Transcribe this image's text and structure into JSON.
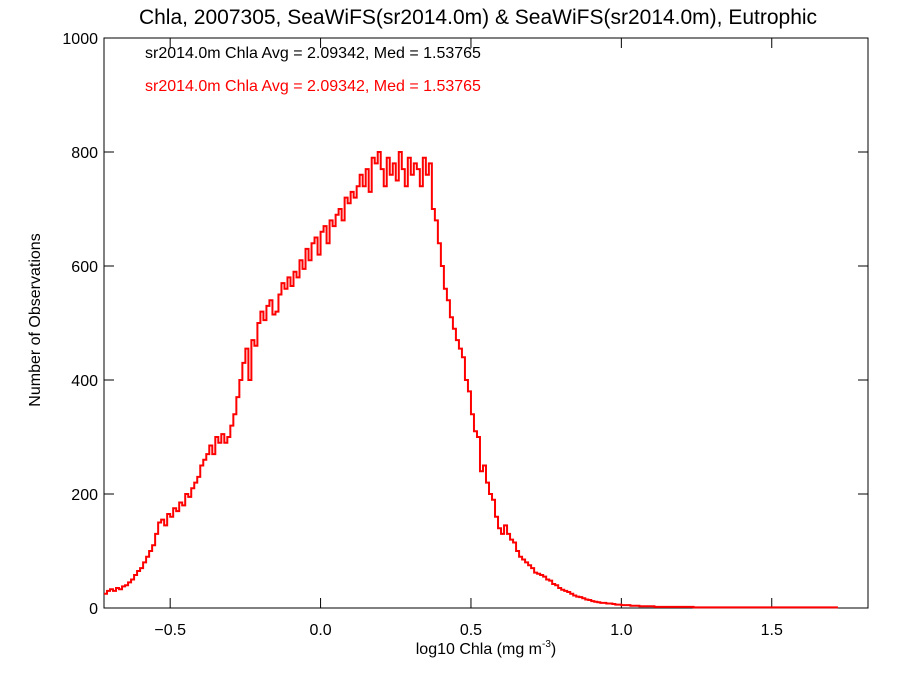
{
  "chart_data": {
    "type": "histogram",
    "title": "Chla, 2007305, SeaWiFS(sr2014.0m) & SeaWiFS(sr2014.0m), Eutrophic",
    "xlabel": "log10 Chla (mg m",
    "xlabel_superscript": "-3",
    "xlabel_close": ")",
    "ylabel": "Number of Observations",
    "xlim": [
      -0.72,
      1.82
    ],
    "ylim": [
      0,
      1000
    ],
    "x_ticks": [
      -0.5,
      0.0,
      0.5,
      1.0,
      1.5
    ],
    "x_tick_labels": [
      "−0.5",
      "0.0",
      "0.5",
      "1.0",
      "1.5"
    ],
    "y_ticks": [
      0,
      200,
      400,
      600,
      800,
      1000
    ],
    "y_tick_labels": [
      "0",
      "200",
      "400",
      "600",
      "800",
      "1000"
    ],
    "bin_start": -0.72,
    "bin_width": 0.01,
    "colors": {
      "series1": "#000000",
      "series2": "#ff0000"
    },
    "annotations": [
      {
        "text": "sr2014.0m Chla Avg = 2.09342, Med = 1.53765",
        "color": "#000000"
      },
      {
        "text": "sr2014.0m Chla Avg = 2.09342, Med = 1.53765",
        "color": "#ff0000"
      }
    ],
    "series": [
      {
        "color": "#ff0000",
        "values": [
          25,
          30,
          33,
          30,
          35,
          33,
          38,
          40,
          45,
          50,
          58,
          65,
          70,
          80,
          90,
          100,
          110,
          130,
          150,
          155,
          145,
          165,
          160,
          175,
          170,
          185,
          180,
          200,
          195,
          210,
          220,
          230,
          250,
          260,
          270,
          285,
          270,
          300,
          290,
          305,
          290,
          300,
          320,
          340,
          370,
          400,
          430,
          455,
          400,
          470,
          460,
          500,
          520,
          505,
          530,
          540,
          515,
          520,
          550,
          570,
          560,
          580,
          565,
          590,
          580,
          610,
          595,
          630,
          610,
          640,
          650,
          620,
          660,
          670,
          640,
          680,
          670,
          690,
          700,
          680,
          720,
          710,
          730,
          720,
          740,
          760,
          740,
          770,
          730,
          790,
          780,
          800,
          770,
          740,
          790,
          760,
          780,
          750,
          800,
          770,
          740,
          790,
          760,
          780,
          770,
          740,
          790,
          760,
          780,
          700,
          680,
          640,
          600,
          560,
          540,
          510,
          490,
          470,
          455,
          440,
          400,
          380,
          340,
          310,
          300,
          240,
          250,
          220,
          200,
          190,
          160,
          140,
          130,
          145,
          130,
          120,
          115,
          100,
          90,
          85,
          80,
          75,
          70,
          62,
          60,
          58,
          55,
          50,
          48,
          42,
          40,
          35,
          32,
          30,
          28,
          25,
          22,
          20,
          19,
          17,
          15,
          14,
          12,
          11,
          10,
          9,
          9,
          8,
          8,
          7,
          6,
          6,
          5,
          5,
          5,
          4,
          4,
          4,
          3,
          3,
          3,
          3,
          3,
          2,
          2,
          2,
          2,
          2,
          2,
          2,
          2,
          2,
          2,
          2,
          2,
          2,
          1,
          1,
          1,
          1,
          1,
          1,
          1,
          1,
          1,
          1,
          1,
          1,
          1,
          1,
          1,
          1,
          1,
          1,
          1,
          1,
          1,
          1,
          1,
          1,
          1,
          1,
          1,
          1,
          1,
          1,
          1,
          1,
          1,
          1,
          1,
          1,
          1,
          1,
          1,
          1,
          1,
          1,
          1,
          1,
          1,
          1,
          1,
          1
        ]
      }
    ]
  }
}
